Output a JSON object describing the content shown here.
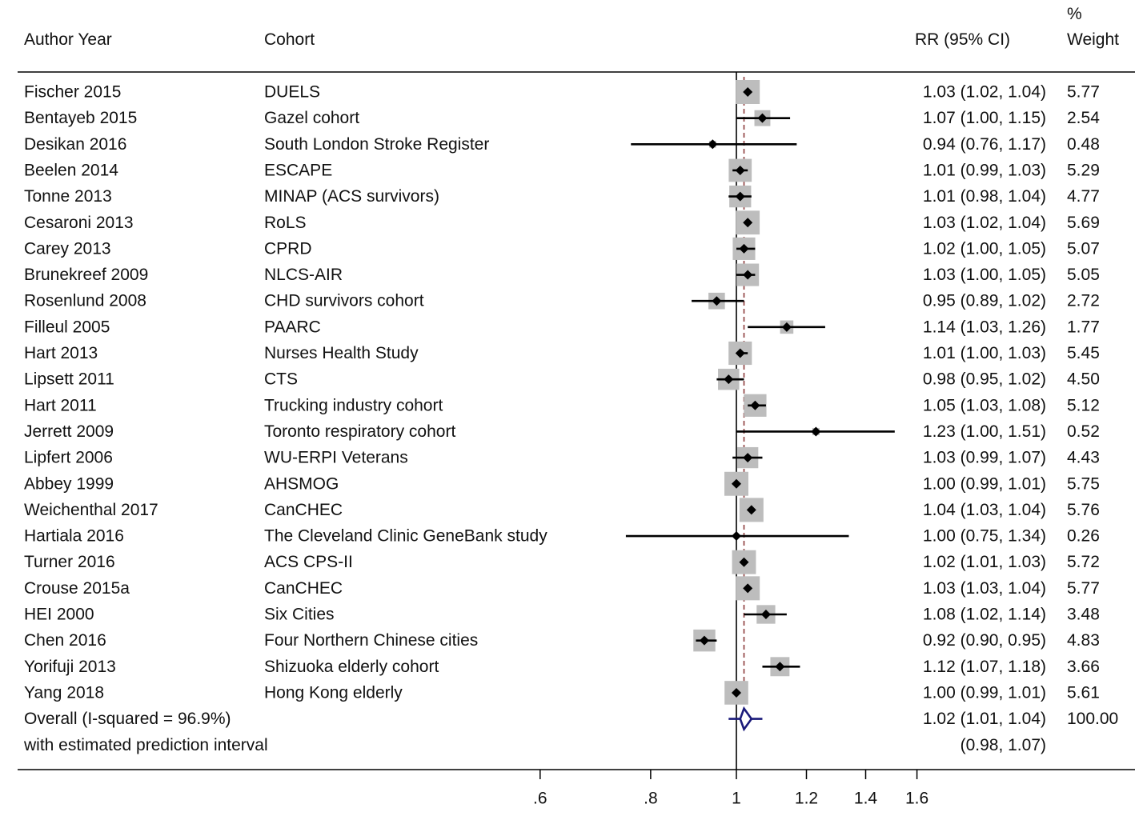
{
  "chart_data": {
    "type": "forest",
    "columns": {
      "author": "Author Year",
      "cohort": "Cohort",
      "effect": "RR (95% CI)",
      "weight_top": "%",
      "weight_bottom": "Weight"
    },
    "studies": [
      {
        "author": "Fischer 2015",
        "cohort": "DUELS",
        "rr": 1.03,
        "lo": 1.02,
        "hi": 1.04,
        "ci_text": "1.03 (1.02, 1.04)",
        "weight": "5.77"
      },
      {
        "author": "Bentayeb 2015",
        "cohort": "Gazel cohort",
        "rr": 1.07,
        "lo": 1.0,
        "hi": 1.15,
        "ci_text": "1.07 (1.00, 1.15)",
        "weight": "2.54"
      },
      {
        "author": "Desikan 2016",
        "cohort": "South London Stroke Register",
        "rr": 0.94,
        "lo": 0.76,
        "hi": 1.17,
        "ci_text": "0.94 (0.76, 1.17)",
        "weight": "0.48"
      },
      {
        "author": "Beelen 2014",
        "cohort": "ESCAPE",
        "rr": 1.01,
        "lo": 0.99,
        "hi": 1.03,
        "ci_text": "1.01 (0.99, 1.03)",
        "weight": "5.29"
      },
      {
        "author": "Tonne 2013",
        "cohort": "MINAP (ACS survivors)",
        "rr": 1.01,
        "lo": 0.98,
        "hi": 1.04,
        "ci_text": "1.01 (0.98, 1.04)",
        "weight": "4.77"
      },
      {
        "author": "Cesaroni 2013",
        "cohort": "RoLS",
        "rr": 1.03,
        "lo": 1.02,
        "hi": 1.04,
        "ci_text": "1.03 (1.02, 1.04)",
        "weight": "5.69"
      },
      {
        "author": "Carey 2013",
        "cohort": "CPRD",
        "rr": 1.02,
        "lo": 1.0,
        "hi": 1.05,
        "ci_text": "1.02 (1.00, 1.05)",
        "weight": "5.07"
      },
      {
        "author": "Brunekreef 2009",
        "cohort": "NLCS-AIR",
        "rr": 1.03,
        "lo": 1.0,
        "hi": 1.05,
        "ci_text": "1.03 (1.00, 1.05)",
        "weight": "5.05"
      },
      {
        "author": "Rosenlund 2008",
        "cohort": "CHD survivors cohort",
        "rr": 0.95,
        "lo": 0.89,
        "hi": 1.02,
        "ci_text": "0.95 (0.89, 1.02)",
        "weight": "2.72"
      },
      {
        "author": "Filleul 2005",
        "cohort": "PAARC",
        "rr": 1.14,
        "lo": 1.03,
        "hi": 1.26,
        "ci_text": "1.14 (1.03, 1.26)",
        "weight": "1.77"
      },
      {
        "author": "Hart 2013",
        "cohort": "Nurses Health Study",
        "rr": 1.01,
        "lo": 1.0,
        "hi": 1.03,
        "ci_text": "1.01 (1.00, 1.03)",
        "weight": "5.45"
      },
      {
        "author": "Lipsett 2011",
        "cohort": "CTS",
        "rr": 0.98,
        "lo": 0.95,
        "hi": 1.02,
        "ci_text": "0.98 (0.95, 1.02)",
        "weight": "4.50"
      },
      {
        "author": "Hart 2011",
        "cohort": "Trucking industry cohort",
        "rr": 1.05,
        "lo": 1.03,
        "hi": 1.08,
        "ci_text": "1.05 (1.03, 1.08)",
        "weight": "5.12"
      },
      {
        "author": "Jerrett 2009",
        "cohort": "Toronto respiratory cohort",
        "rr": 1.23,
        "lo": 1.0,
        "hi": 1.51,
        "ci_text": "1.23 (1.00, 1.51)",
        "weight": "0.52"
      },
      {
        "author": "Lipfert 2006",
        "cohort": "WU-ERPI Veterans",
        "rr": 1.03,
        "lo": 0.99,
        "hi": 1.07,
        "ci_text": "1.03 (0.99, 1.07)",
        "weight": "4.43"
      },
      {
        "author": "Abbey 1999",
        "cohort": "AHSMOG",
        "rr": 1.0,
        "lo": 0.99,
        "hi": 1.01,
        "ci_text": "1.00 (0.99, 1.01)",
        "weight": "5.75"
      },
      {
        "author": "Weichenthal 2017",
        "cohort": "CanCHEC",
        "rr": 1.04,
        "lo": 1.03,
        "hi": 1.04,
        "ci_text": "1.04 (1.03, 1.04)",
        "weight": "5.76"
      },
      {
        "author": "Hartiala 2016",
        "cohort": "The Cleveland Clinic GeneBank study",
        "rr": 1.0,
        "lo": 0.75,
        "hi": 1.34,
        "ci_text": "1.00 (0.75, 1.34)",
        "weight": "0.26"
      },
      {
        "author": "Turner 2016",
        "cohort": "ACS CPS-II",
        "rr": 1.02,
        "lo": 1.01,
        "hi": 1.03,
        "ci_text": "1.02 (1.01, 1.03)",
        "weight": "5.72"
      },
      {
        "author": "Crouse 2015a",
        "cohort": "CanCHEC",
        "rr": 1.03,
        "lo": 1.03,
        "hi": 1.04,
        "ci_text": "1.03 (1.03, 1.04)",
        "weight": "5.77"
      },
      {
        "author": "HEI 2000",
        "cohort": "Six Cities",
        "rr": 1.08,
        "lo": 1.02,
        "hi": 1.14,
        "ci_text": "1.08 (1.02, 1.14)",
        "weight": "3.48"
      },
      {
        "author": "Chen 2016",
        "cohort": "Four Northern Chinese cities",
        "rr": 0.92,
        "lo": 0.9,
        "hi": 0.95,
        "ci_text": "0.92 (0.90, 0.95)",
        "weight": "4.83"
      },
      {
        "author": "Yorifuji 2013",
        "cohort": "Shizuoka elderly cohort",
        "rr": 1.12,
        "lo": 1.07,
        "hi": 1.18,
        "ci_text": "1.12 (1.07, 1.18)",
        "weight": "3.66"
      },
      {
        "author": "Yang 2018",
        "cohort": "Hong Kong elderly",
        "rr": 1.0,
        "lo": 0.99,
        "hi": 1.01,
        "ci_text": "1.00 (0.99, 1.01)",
        "weight": "5.61"
      }
    ],
    "overall": {
      "label": "Overall (I-squared = 96.9%)",
      "rr": 1.02,
      "lo": 1.01,
      "hi": 1.04,
      "ci_text": "1.02 (1.01, 1.04)",
      "weight": "100.00",
      "pi_label": "with estimated prediction interval",
      "pi_lo": 0.98,
      "pi_hi": 1.07,
      "pi_text": "(0.98, 1.07)"
    },
    "x_axis": {
      "scale": "log",
      "ticks": [
        0.6,
        0.8,
        1,
        1.2,
        1.4,
        1.6
      ],
      "tick_labels": [
        ".6",
        ".8",
        "1",
        "1.2",
        "1.4",
        "1.6"
      ],
      "null_value": 1,
      "reference_line": 1.02
    },
    "colors": {
      "box": "#bdbdbd",
      "point": "#000000",
      "ci": "#000000",
      "reference": "#8b3a3a",
      "overall_diamond": "#1a1a7a"
    }
  }
}
